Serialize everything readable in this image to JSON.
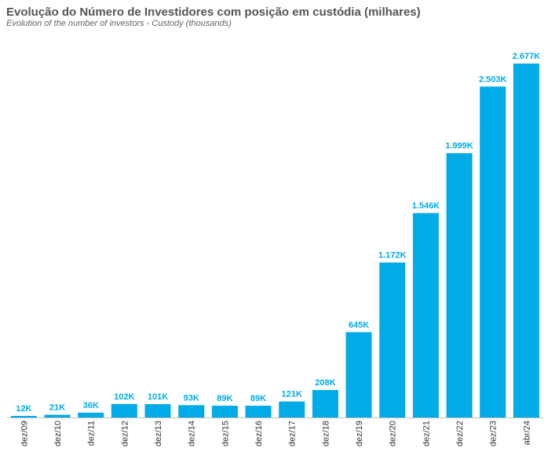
{
  "chart_data": {
    "type": "bar",
    "title": "Evolução do Número de Investidores com posição em custódia (milhares)",
    "subtitle": "Evolution of the number of investors - Custody (thousands)",
    "categories": [
      "dez/09",
      "dez/10",
      "dez/11",
      "dez/12",
      "dez/13",
      "dez/14",
      "dez/15",
      "dez/16",
      "dez/17",
      "dez/18",
      "dez/19",
      "dez/20",
      "dez/21",
      "dez/22",
      "dez/23",
      "abr/24"
    ],
    "values": [
      12,
      21,
      36,
      102,
      101,
      93,
      89,
      89,
      121,
      208,
      645,
      1172,
      1546,
      1999,
      2503,
      2677
    ],
    "labels": [
      "12K",
      "21K",
      "36K",
      "102K",
      "101K",
      "93K",
      "89K",
      "89K",
      "121K",
      "208K",
      "645K",
      "1.172K",
      "1.546K",
      "1.999K",
      "2.503K",
      "2.677K"
    ],
    "ylim": [
      0,
      2677
    ],
    "grid": false,
    "legend": "none",
    "bar_color": "#00ABE7",
    "label_color": "#00ABE7",
    "axis_color": "#BFBFBF"
  }
}
